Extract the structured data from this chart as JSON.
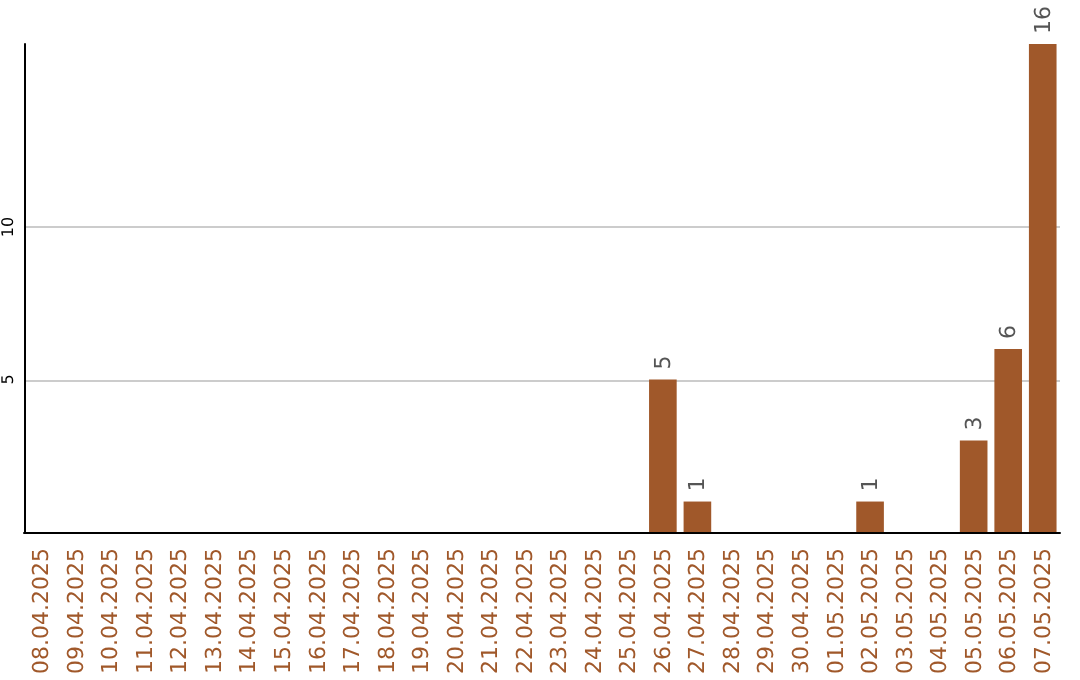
{
  "chart_data": {
    "type": "bar",
    "categories": [
      "08.04.2025",
      "09.04.2025",
      "10.04.2025",
      "11.04.2025",
      "12.04.2025",
      "13.04.2025",
      "14.04.2025",
      "15.04.2025",
      "16.04.2025",
      "17.04.2025",
      "18.04.2025",
      "19.04.2025",
      "20.04.2025",
      "21.04.2025",
      "22.04.2025",
      "23.04.2025",
      "24.04.2025",
      "25.04.2025",
      "26.04.2025",
      "27.04.2025",
      "28.04.2025",
      "29.04.2025",
      "30.04.2025",
      "01.05.2025",
      "02.05.2025",
      "03.05.2025",
      "04.05.2025",
      "05.05.2025",
      "06.05.2025",
      "07.05.2025"
    ],
    "values": [
      0,
      0,
      0,
      0,
      0,
      0,
      0,
      0,
      0,
      0,
      0,
      0,
      0,
      0,
      0,
      0,
      0,
      0,
      5,
      1,
      0,
      0,
      0,
      0,
      1,
      0,
      0,
      3,
      6,
      16
    ],
    "value_labels": [
      null,
      null,
      null,
      null,
      null,
      null,
      null,
      null,
      null,
      null,
      null,
      null,
      null,
      null,
      null,
      null,
      null,
      null,
      "5",
      "1",
      null,
      null,
      null,
      null,
      "1",
      null,
      null,
      "3",
      "6",
      "16"
    ],
    "color": "#a0582a",
    "ylim": [
      0,
      16
    ],
    "yticks": [
      5,
      10
    ],
    "grid": "y"
  }
}
